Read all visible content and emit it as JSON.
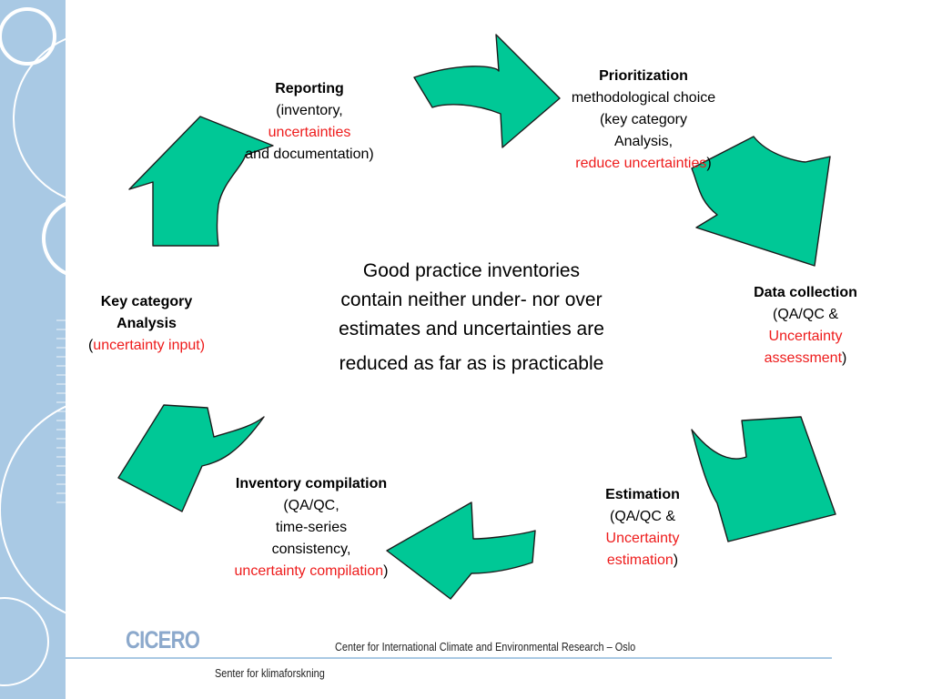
{
  "diagram": {
    "center_text": {
      "line1": "Good practice inventories",
      "line2": "contain neither under- nor over",
      "line3": "estimates and uncertainties are",
      "line4": "reduced as far as is practicable"
    },
    "nodes": {
      "reporting": {
        "title": "Reporting",
        "line1": "(inventory,",
        "line2_red": "uncertainties",
        "line3": "and documentation)"
      },
      "prioritization": {
        "title": "Prioritization",
        "line1": "methodological choice",
        "line2": "(key category",
        "line3": "Analysis,",
        "line4_red": "reduce uncertainties",
        "line4_suffix": ")"
      },
      "data_collection": {
        "title": "Data collection",
        "line1": "(QA/QC &",
        "line2_red": "Uncertainty",
        "line3_red": "assessment",
        "line3_suffix": ")"
      },
      "estimation": {
        "title": "Estimation",
        "line1": "(QA/QC &",
        "line2_red": "Uncertainty",
        "line3_red": "estimation",
        "line3_suffix": ")"
      },
      "inventory_compilation": {
        "title": "Inventory compilation",
        "line1": "(QA/QC,",
        "line2": "time-series",
        "line3": "consistency,",
        "line4_red": "uncertainty compilation",
        "line4_suffix": ")"
      },
      "key_category": {
        "title1": "Key category",
        "title2": "Analysis",
        "line1_prefix": "(",
        "line1_red": "uncertainty input)"
      }
    },
    "colors": {
      "arrow_fill": "#00c896",
      "highlight_text": "#ee1c1c",
      "sidebar": "#a9c9e4"
    }
  },
  "footer": {
    "logo": "CICERO",
    "org_name": "Center for International Climate and Environmental Research – Oslo",
    "org_name_local": "Senter for klimaforskning"
  }
}
